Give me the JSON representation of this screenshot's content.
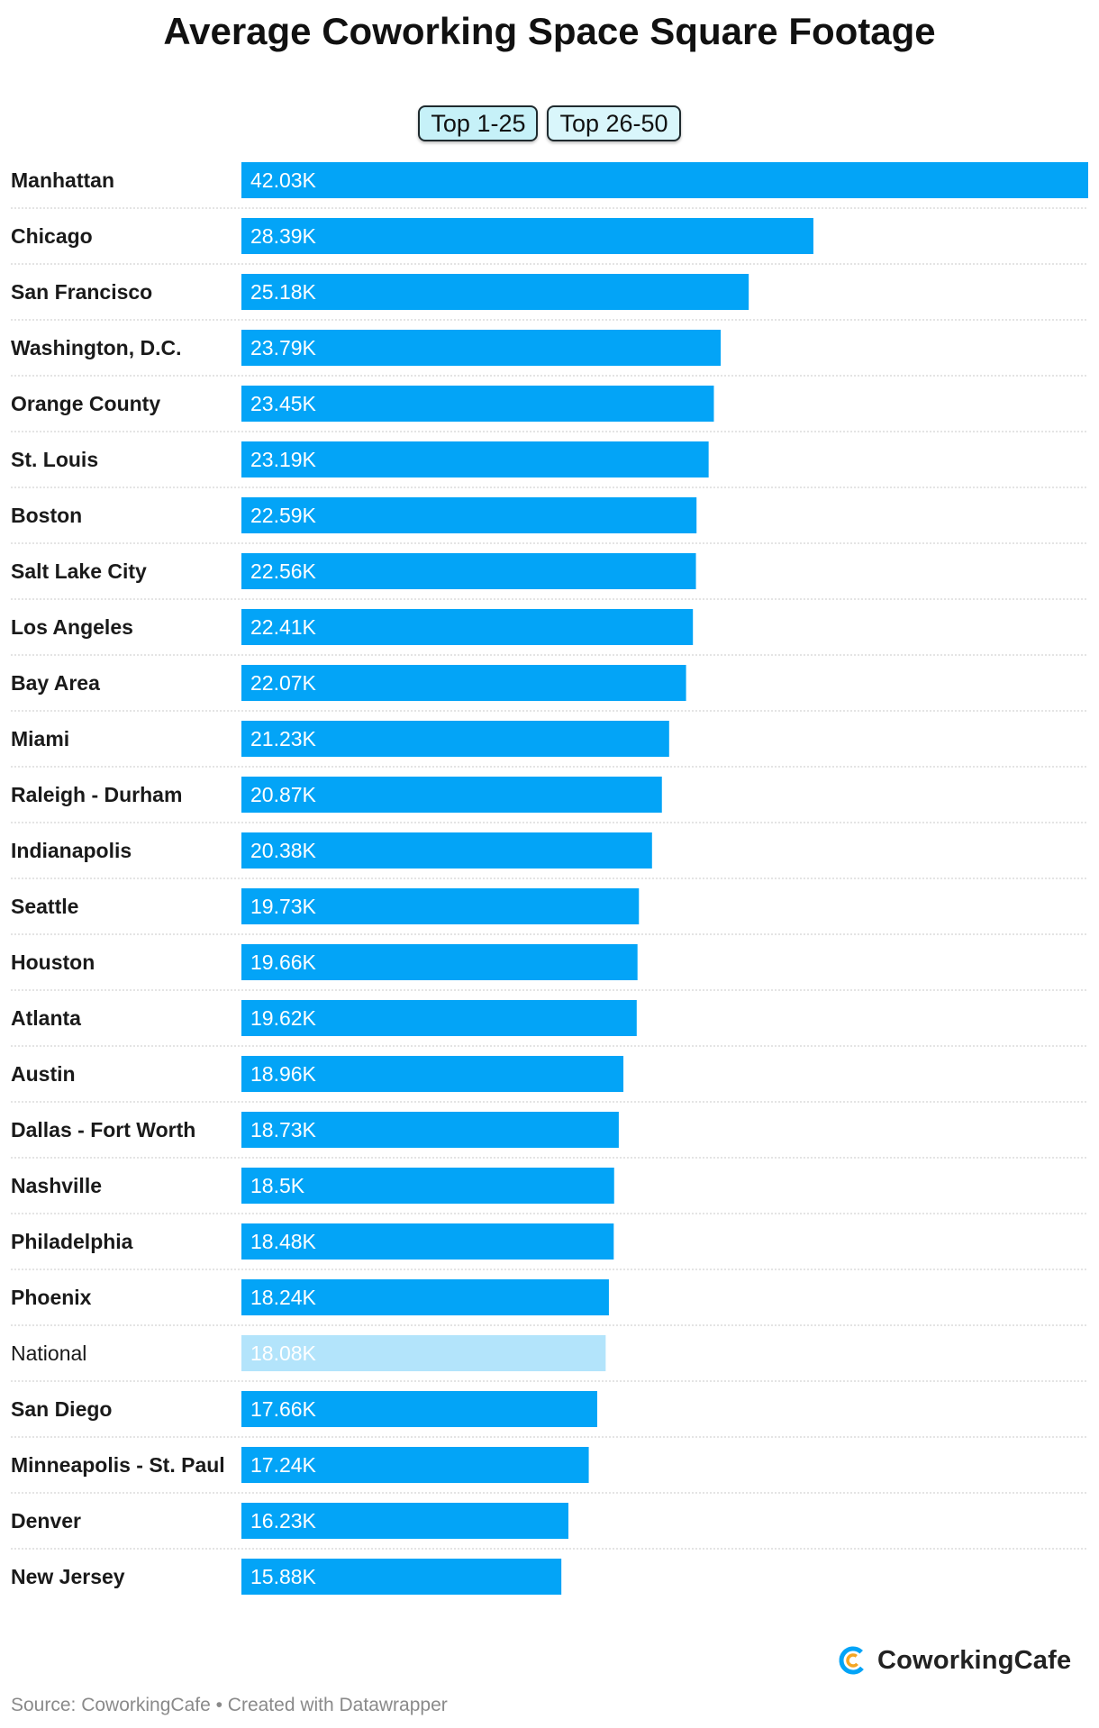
{
  "title": "Average Coworking Space Square Footage",
  "tabs": [
    {
      "label": "Top 1-25",
      "active": true
    },
    {
      "label": "Top 26-50",
      "active": false
    }
  ],
  "colors": {
    "bar": "#03a4f7",
    "bar_highlight": "#b3e4fb",
    "bar_label": "#ffffff",
    "gridline": "#c8c8c8"
  },
  "chart_data": {
    "type": "bar",
    "orientation": "horizontal",
    "title": "Average Coworking Space Square Footage",
    "categories": [
      "Manhattan",
      "Chicago",
      "San Francisco",
      "Washington, D.C.",
      "Orange County",
      "St. Louis",
      "Boston",
      "Salt Lake City",
      "Los Angeles",
      "Bay Area",
      "Miami",
      "Raleigh - Durham",
      "Indianapolis",
      "Seattle",
      "Houston",
      "Atlanta",
      "Austin",
      "Dallas - Fort Worth",
      "Nashville",
      "Philadelphia",
      "Phoenix",
      "National",
      "San Diego",
      "Minneapolis - St. Paul",
      "Denver",
      "New Jersey"
    ],
    "values": [
      42030,
      28390,
      25180,
      23790,
      23450,
      23190,
      22590,
      22560,
      22410,
      22070,
      21230,
      20870,
      20380,
      19730,
      19660,
      19620,
      18960,
      18730,
      18500,
      18480,
      18240,
      18080,
      17660,
      17240,
      16230,
      15880
    ],
    "value_labels": [
      "42.03K",
      "28.39K",
      "25.18K",
      "23.79K",
      "23.45K",
      "23.19K",
      "22.59K",
      "22.56K",
      "22.41K",
      "22.07K",
      "21.23K",
      "20.87K",
      "20.38K",
      "19.73K",
      "19.66K",
      "19.62K",
      "18.96K",
      "18.73K",
      "18.5K",
      "18.48K",
      "18.24K",
      "18.08K",
      "17.66K",
      "17.24K",
      "16.23K",
      "15.88K"
    ],
    "highlight": [
      "National"
    ],
    "xlim": [
      0,
      42030
    ],
    "grid": false
  },
  "footer": {
    "source": "Source: CoworkingCafe • Created with Datawrapper",
    "logo_text": "CoworkingCafe"
  }
}
